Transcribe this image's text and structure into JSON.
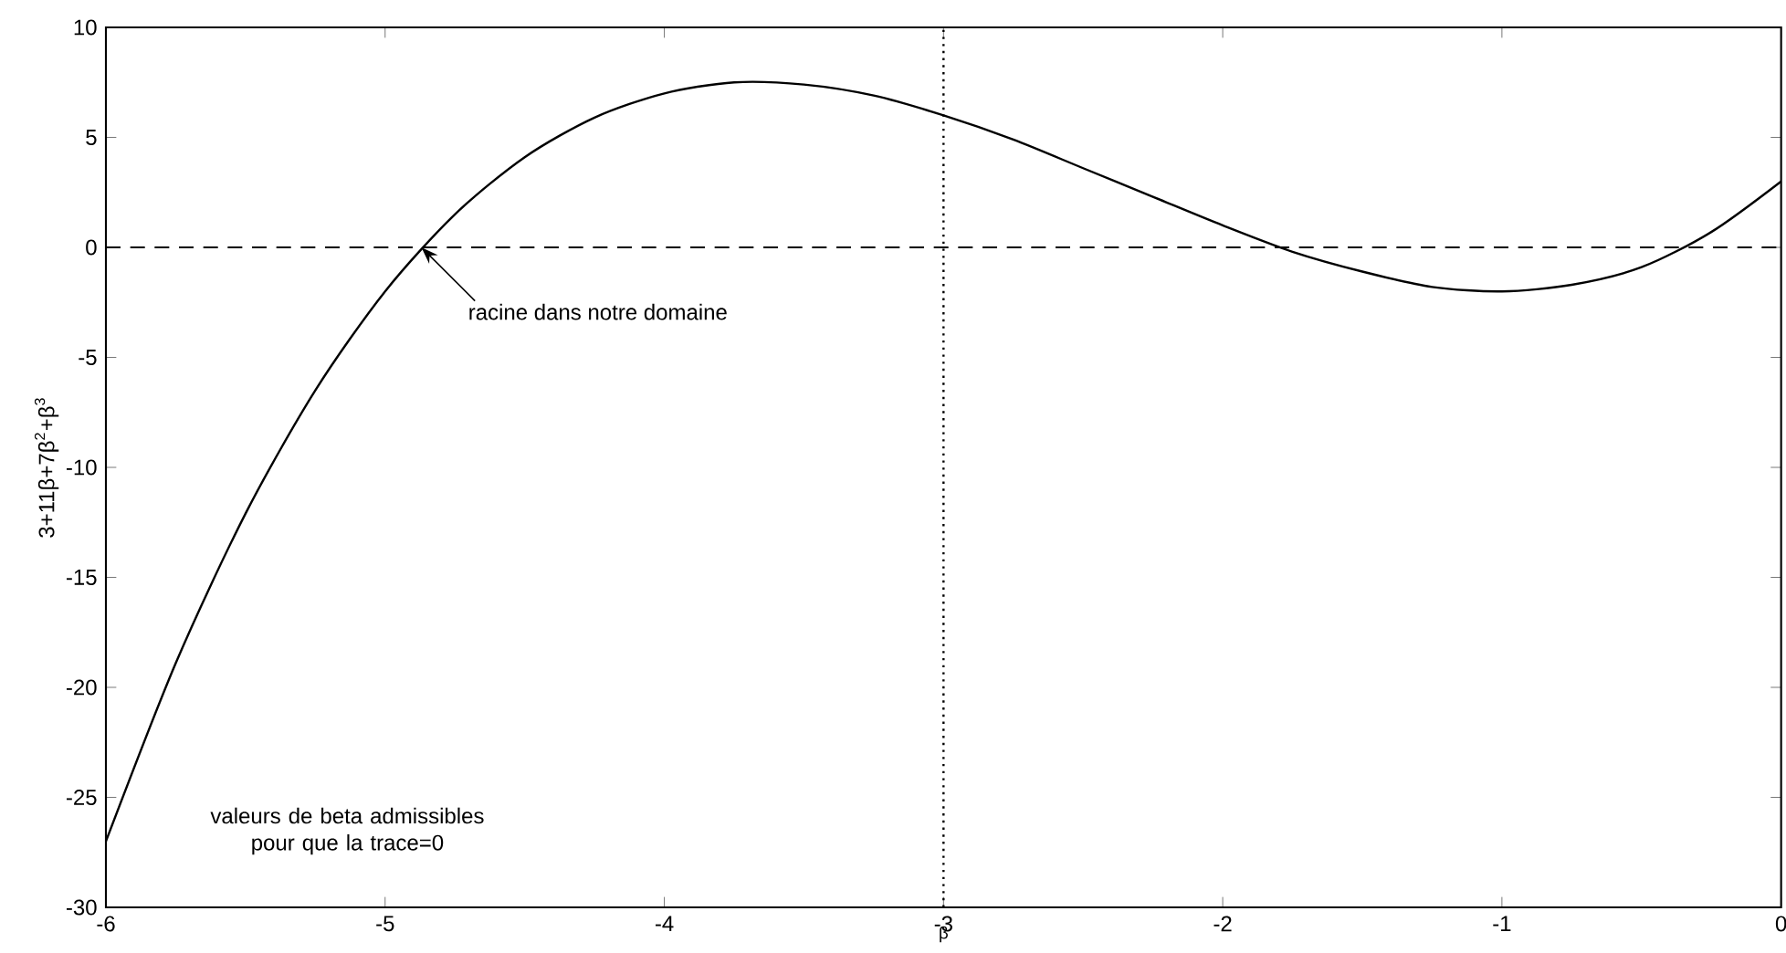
{
  "chart_data": {
    "type": "line",
    "xlabel": "β",
    "ylabel": "3+11β+7β$^{2}$+β$^{3}$",
    "x": [
      -6,
      -5.75,
      -5.5,
      -5.25,
      -5,
      -4.75,
      -4.5,
      -4.25,
      -4,
      -3.75,
      -3.5,
      -3.25,
      -3,
      -2.75,
      -2.5,
      -2.25,
      -2,
      -1.75,
      -1.5,
      -1.25,
      -1,
      -0.75,
      -0.5,
      -0.25,
      0
    ],
    "series": [
      {
        "color": "#000000",
        "values": [
          -27,
          -18.9,
          -12.1,
          -6.5,
          -2,
          1.5,
          4.1,
          5.9,
          7,
          7.5,
          7.4,
          6.9,
          6,
          4.9,
          3.6,
          2.3,
          1,
          -0.2,
          -1.1,
          -1.8,
          -2,
          -1.7,
          -0.9,
          0.7,
          3
        ]
      }
    ],
    "xlim": [
      -6,
      0
    ],
    "ylim": [
      -30,
      10
    ],
    "xticks": [
      -6,
      -5,
      -4,
      -3,
      -2,
      -1,
      0
    ],
    "yticks": [
      -30,
      -25,
      -20,
      -15,
      -10,
      -5,
      0,
      5,
      10
    ],
    "ref_lines": [
      {
        "axis": "y",
        "value": 0,
        "line_style": "dashed"
      },
      {
        "axis": "x",
        "value": -3,
        "line_style": "dotted"
      }
    ],
    "annotations": [
      {
        "text": "racine dans notre domaine",
        "x": -4.87,
        "y": 0
      },
      "valeurs de beta admissibles pour que la trace=0"
    ],
    "grid": false,
    "marker": "none",
    "line_style": "solid"
  }
}
